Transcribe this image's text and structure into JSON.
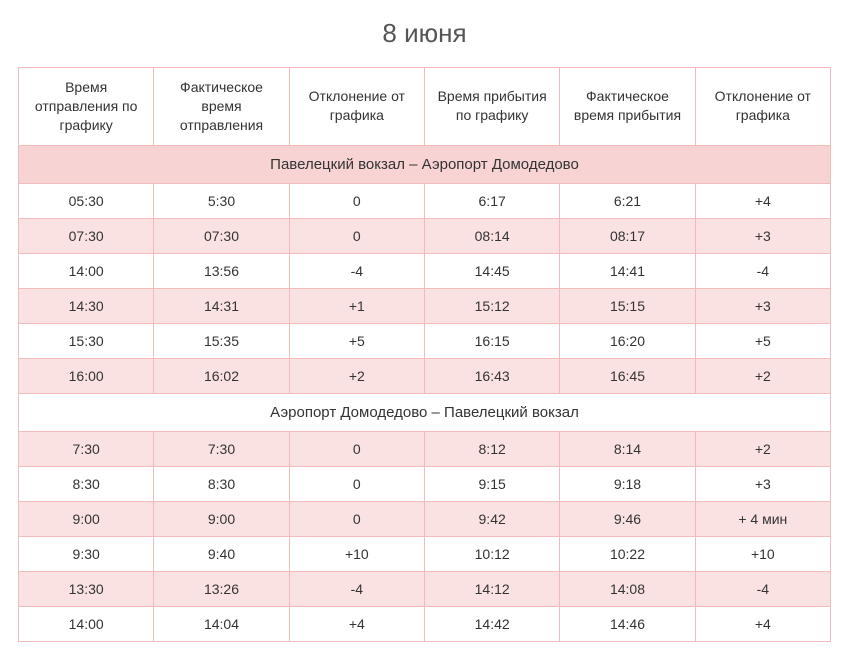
{
  "title": "8 июня",
  "columns": [
    "Время отправления по графику",
    "Фактическое время отправления",
    "Отклонение от графика",
    "Время прибытия по графику",
    "Фактическое время прибытия",
    "Отклонение от графика"
  ],
  "section1": {
    "label": "Павелецкий вокзал – Аэропорт Домодедово",
    "rows": [
      {
        "shade": "white",
        "cells": [
          "05:30",
          "5:30",
          "0",
          "6:17",
          "6:21",
          "+4"
        ]
      },
      {
        "shade": "pink",
        "cells": [
          "07:30",
          "07:30",
          "0",
          "08:14",
          "08:17",
          "+3"
        ]
      },
      {
        "shade": "white",
        "cells": [
          "14:00",
          "13:56",
          "-4",
          "14:45",
          "14:41",
          "-4"
        ]
      },
      {
        "shade": "pink",
        "cells": [
          "14:30",
          "14:31",
          "+1",
          "15:12",
          "15:15",
          "+3"
        ]
      },
      {
        "shade": "white",
        "cells": [
          "15:30",
          "15:35",
          "+5",
          "16:15",
          "16:20",
          "+5"
        ]
      },
      {
        "shade": "pink",
        "cells": [
          "16:00",
          "16:02",
          "+2",
          "16:43",
          "16:45",
          "+2"
        ]
      }
    ]
  },
  "section2": {
    "label": "Аэропорт Домодедово – Павелецкий вокзал",
    "rows": [
      {
        "shade": "pink",
        "cells": [
          "7:30",
          "7:30",
          "0",
          "8:12",
          "8:14",
          "+2"
        ]
      },
      {
        "shade": "white",
        "cells": [
          "8:30",
          "8:30",
          "0",
          "9:15",
          "9:18",
          "+3"
        ]
      },
      {
        "shade": "pink",
        "cells": [
          "9:00",
          "9:00",
          "0",
          "9:42",
          "9:46",
          "+ 4 мин"
        ]
      },
      {
        "shade": "white",
        "cells": [
          "9:30",
          "9:40",
          "+10",
          "10:12",
          "10:22",
          "+10"
        ]
      },
      {
        "shade": "pink",
        "cells": [
          "13:30",
          "13:26",
          "-4",
          "14:12",
          "14:08",
          "-4"
        ]
      },
      {
        "shade": "white",
        "cells": [
          "14:00",
          "14:04",
          "+4",
          "14:42",
          "14:46",
          "+4"
        ]
      }
    ]
  },
  "colors": {
    "border": "#f2bcbc",
    "section_bg": "#f8d3d3",
    "pink_bg": "#fbe2e2",
    "white_bg": "#ffffff",
    "title_color": "#555555",
    "text_color": "#333333"
  }
}
